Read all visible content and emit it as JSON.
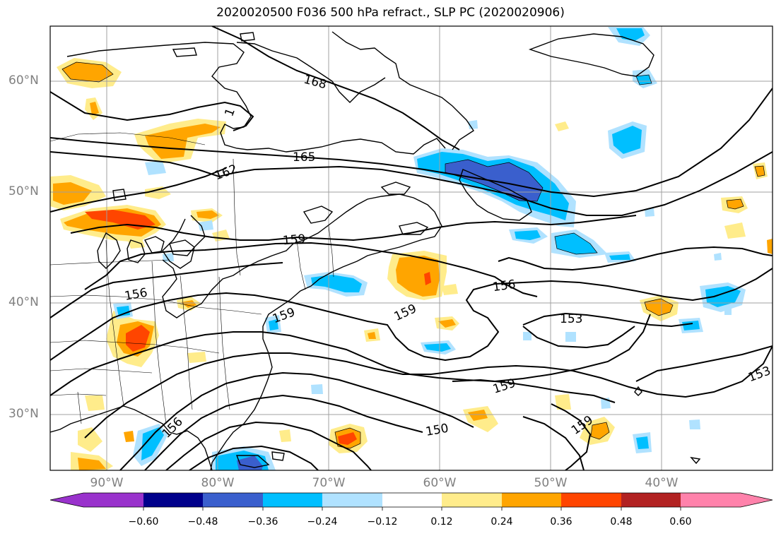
{
  "title": "2020020500 F036 500 hPa refract., SLP PC (2020020906)",
  "lat_labels": [
    "60°N",
    "50°N",
    "40°N",
    "30°N"
  ],
  "lon_labels": [
    "90°W",
    "80°W",
    "70°W",
    "60°W",
    "50°W",
    "40°W"
  ],
  "contour_labels": [
    "168",
    "1",
    "165",
    "162",
    "159",
    "156",
    "159",
    "156",
    "159",
    "153",
    "159",
    "153",
    "150",
    "159",
    "156"
  ],
  "colorbar": {
    "tick_labels": [
      "−0.60",
      "−0.48",
      "−0.36",
      "−0.24",
      "−0.12",
      "0.12",
      "0.24",
      "0.36",
      "0.48",
      "0.60"
    ],
    "colors": [
      "#9932cc",
      "#00008b",
      "#3a5fcd",
      "#00bfff",
      "#b0e2ff",
      "#ffffff",
      "#ffec8b",
      "#ffa500",
      "#ff4500",
      "#b22222",
      "#ff82ab"
    ]
  },
  "colors": {
    "coast": "#000000",
    "grid": "#a0a0a0",
    "axis_label": "#808080"
  }
}
